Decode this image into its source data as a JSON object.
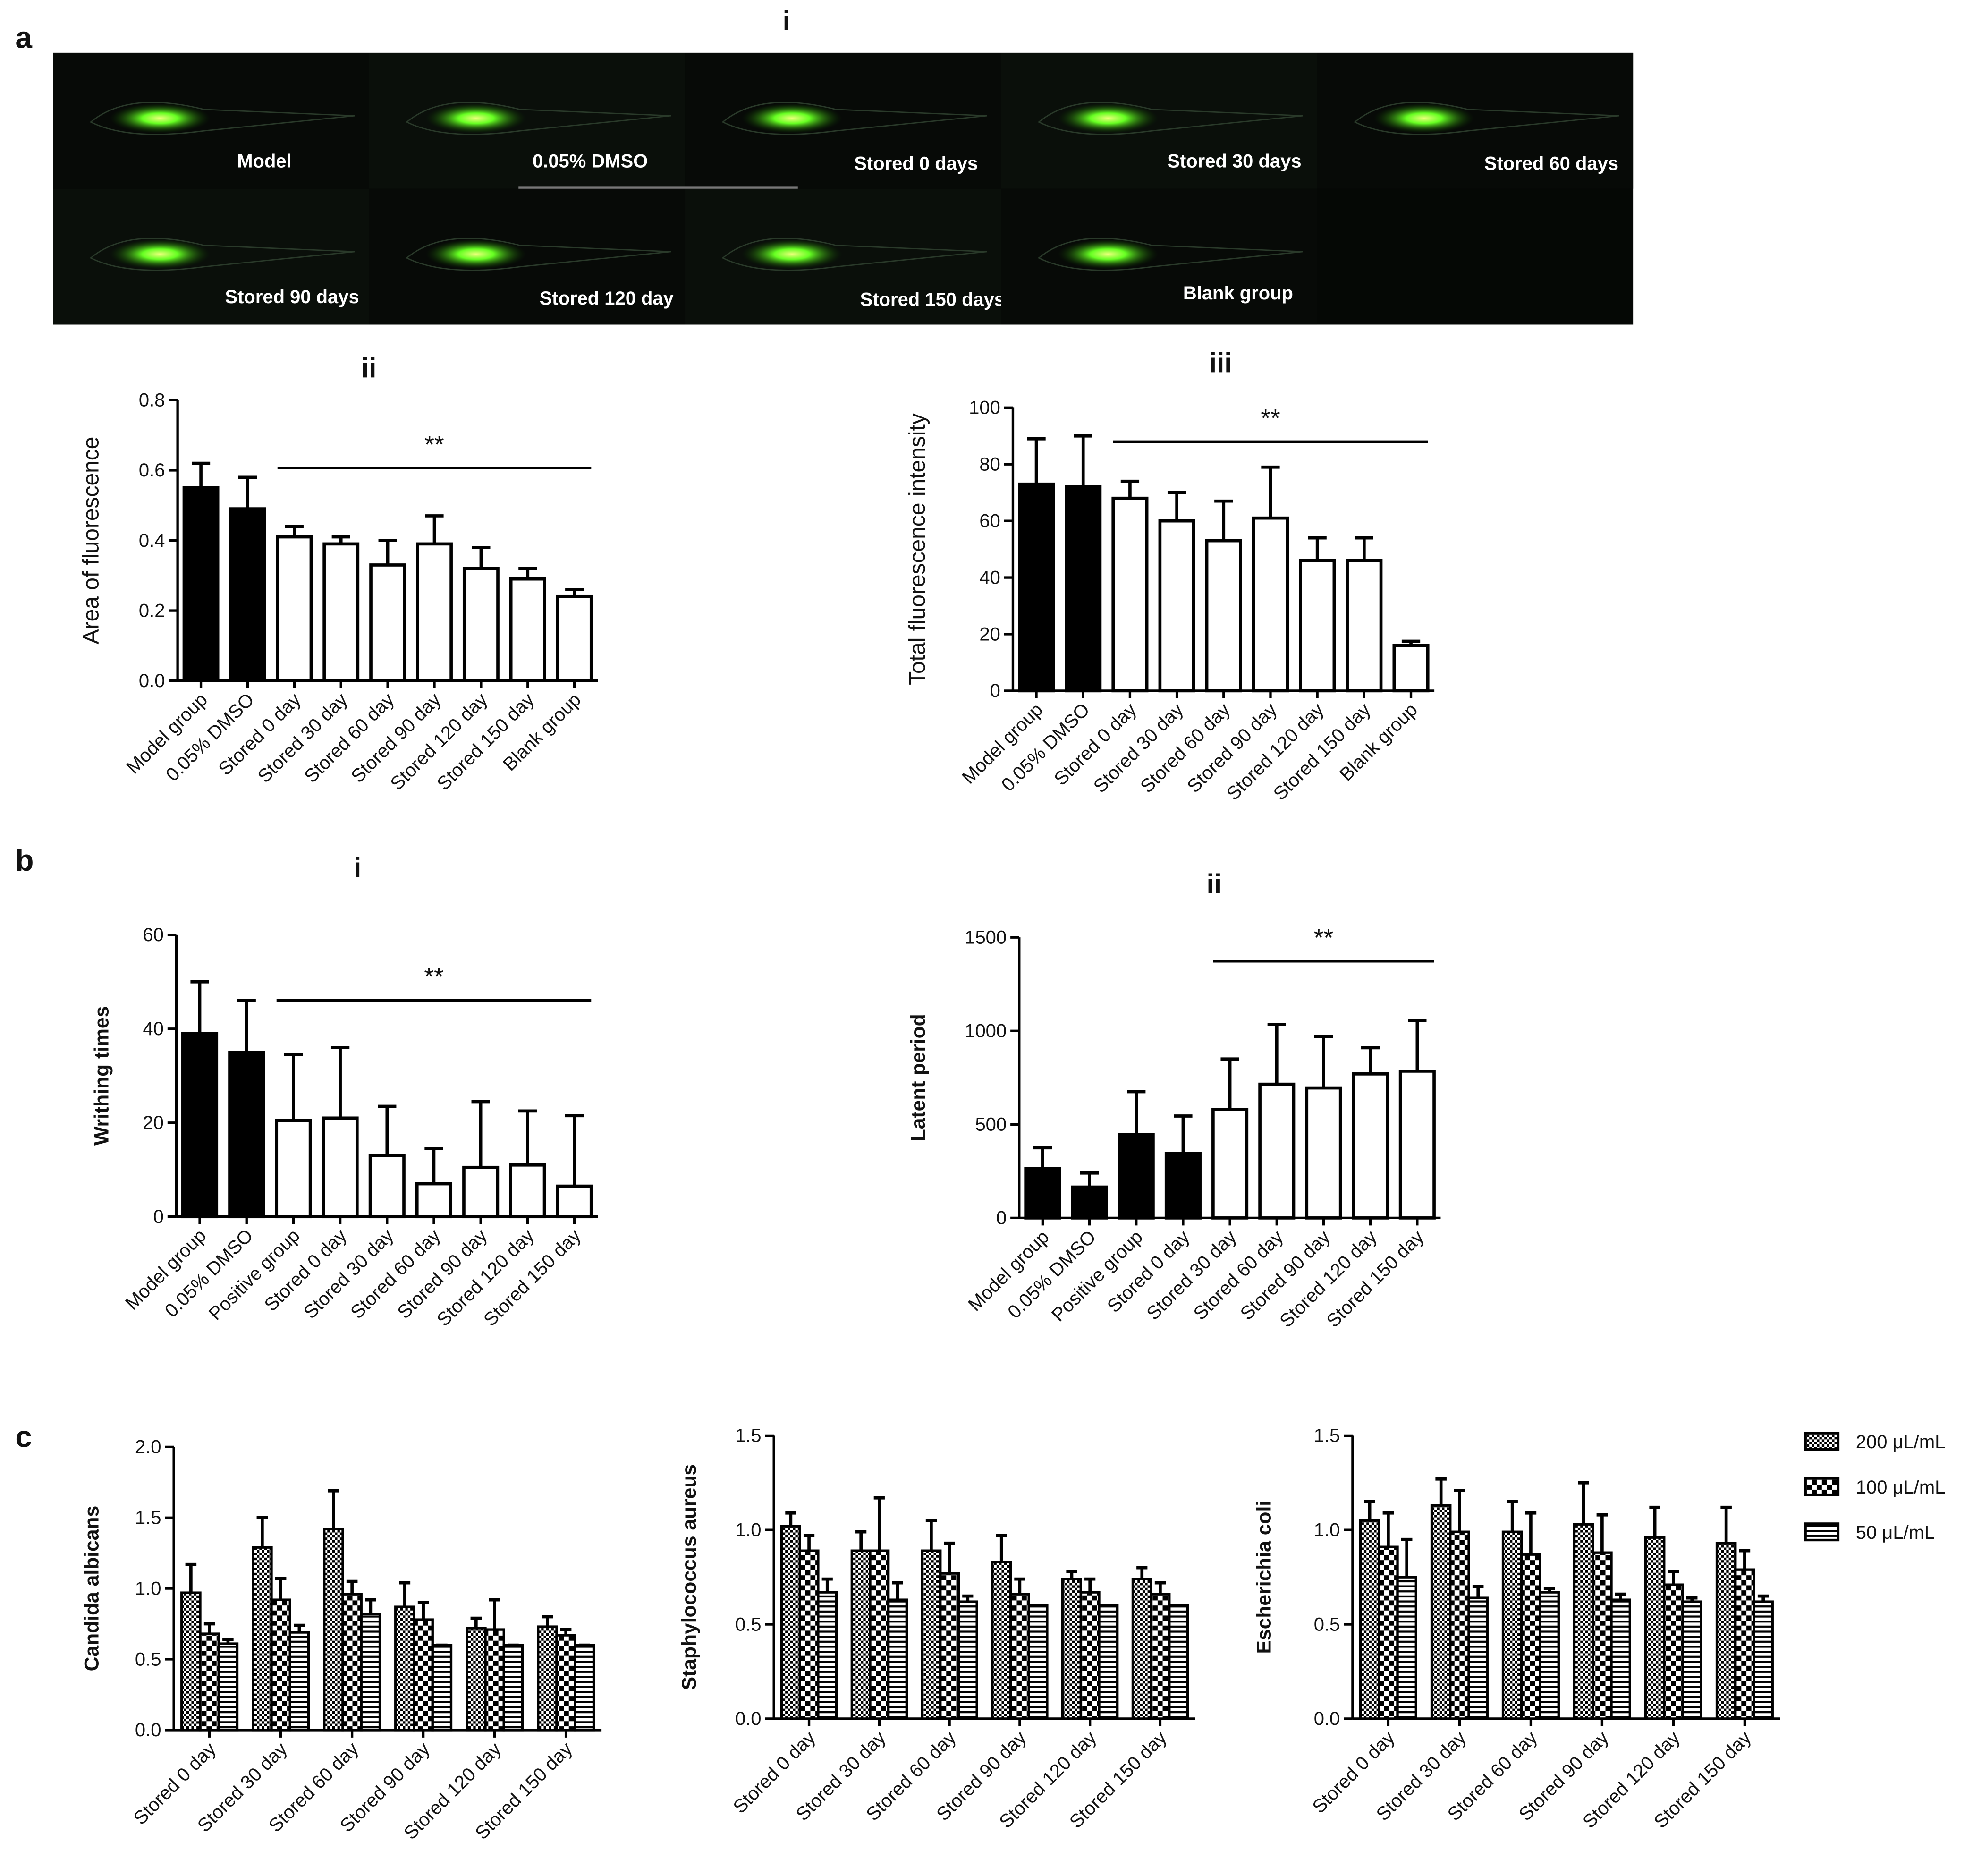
{
  "figure": {
    "panel_labels": [
      "a",
      "b",
      "c"
    ],
    "image_panel": {
      "title": "i",
      "labels": [
        "Model",
        "0.05% DMSO",
        "Stored  0 days",
        "Stored 30 days",
        "Stored 60 days",
        "Stored 90 days",
        "Stored 120 day",
        "Stored 150 days",
        "Blank group"
      ]
    }
  },
  "chart_data": [
    {
      "type": "bar",
      "title": "ii",
      "ylabel": "Area of fluorescence",
      "categories": [
        "Model group",
        "0.05% DMSO",
        "Stored 0 day",
        "Stored 30 day",
        "Stored 60 day",
        "Stored 90 day",
        "Stored 120 day",
        "Stored 150 day",
        "Blank group"
      ],
      "values": [
        0.55,
        0.49,
        0.41,
        0.39,
        0.33,
        0.39,
        0.32,
        0.29,
        0.24
      ],
      "errors": [
        0.07,
        0.09,
        0.03,
        0.02,
        0.07,
        0.08,
        0.06,
        0.03,
        0.02
      ],
      "colors": [
        "#000000",
        "#000000",
        "#ffffff",
        "#ffffff",
        "#ffffff",
        "#ffffff",
        "#ffffff",
        "#ffffff",
        "#ffffff"
      ],
      "ylim": [
        0,
        0.8
      ],
      "yticks": [
        {
          "value": 0,
          "label": "0.0"
        },
        0.2,
        0.4,
        0.6,
        0.8
      ],
      "significance": {
        "text": "**",
        "start": "Stored 0 day",
        "end": "Blank group"
      }
    },
    {
      "type": "bar",
      "title": "iii",
      "ylabel": "Total fluorescence intensity",
      "categories": [
        "Model group",
        "0.05% DMSO",
        "Stored 0 day",
        "Stored 30 day",
        "Stored 60 day",
        "Stored 90 day",
        "Stored 120 day",
        "Stored 150 day",
        "Blank group"
      ],
      "values": [
        73,
        72,
        68,
        60,
        53,
        61,
        46,
        46,
        16
      ],
      "errors": [
        16,
        18,
        6,
        10,
        14,
        18,
        8,
        8,
        1.5
      ],
      "colors": [
        "#000000",
        "#000000",
        "#ffffff",
        "#ffffff",
        "#ffffff",
        "#ffffff",
        "#ffffff",
        "#ffffff",
        "#ffffff"
      ],
      "ylim": [
        0,
        100
      ],
      "yticks": [
        0,
        20,
        40,
        60,
        80,
        100
      ],
      "significance": {
        "text": "**",
        "start": "Stored 0 day",
        "end": "Blank group"
      }
    },
    {
      "type": "bar",
      "title": "i",
      "ylabel": "Writhing times",
      "categories": [
        "Model group",
        "0.05% DMSO",
        "Positive group",
        "Stored 0 day",
        "Stored 30 day",
        "Stored 60 day",
        "Stored 90 day",
        "Stored 120 day",
        "Stored 150 day"
      ],
      "values": [
        39,
        35,
        20.5,
        21,
        13,
        7,
        10.5,
        11,
        6.5
      ],
      "errors": [
        11,
        11,
        14,
        15,
        10.5,
        7.5,
        14,
        11.5,
        15
      ],
      "colors": [
        "#000000",
        "#000000",
        "#ffffff",
        "#ffffff",
        "#ffffff",
        "#ffffff",
        "#ffffff",
        "#ffffff",
        "#ffffff"
      ],
      "ylim": [
        0,
        60
      ],
      "yticks": [
        0,
        20,
        40,
        60
      ],
      "significance": {
        "text": "**",
        "start": "Positive group",
        "end": "Stored 150 day"
      }
    },
    {
      "type": "bar",
      "title": "ii",
      "ylabel": "Latent period",
      "categories": [
        "Model group",
        "0.05% DMSO",
        "Positive group",
        "Stored 0 day",
        "Stored 30 day",
        "Stored 60 day",
        "Stored 90 day",
        "Stored 120 day",
        "Stored 150 day"
      ],
      "values": [
        265,
        165,
        445,
        345,
        580,
        715,
        695,
        770,
        785
      ],
      "errors": [
        110,
        75,
        230,
        200,
        270,
        320,
        275,
        140,
        270
      ],
      "colors": [
        "#000000",
        "#000000",
        "#000000",
        "#000000",
        "#ffffff",
        "#ffffff",
        "#ffffff",
        "#ffffff",
        "#ffffff"
      ],
      "ylim": [
        0,
        1500
      ],
      "yticks": [
        0,
        500,
        1000,
        1500
      ],
      "significance": {
        "text": "**",
        "start": "Stored 30 day",
        "end": "Stored 150 day"
      }
    },
    {
      "type": "grouped-bar",
      "ylabel": "Candida albicans",
      "categories": [
        "Stored 0 day",
        "Stored 30 day",
        "Stored 60 day",
        "Stored 90 day",
        "Stored 120 day",
        "Stored 150 day"
      ],
      "series": [
        {
          "name": "200 μL/mL",
          "color": "#000000",
          "pattern": "fine-checker",
          "values": [
            0.97,
            1.29,
            1.42,
            0.87,
            0.72,
            0.73
          ],
          "errors": [
            0.2,
            0.21,
            0.27,
            0.17,
            0.07,
            0.07
          ]
        },
        {
          "name": "100 μL/mL",
          "color": "#000000",
          "pattern": "checker",
          "values": [
            0.68,
            0.92,
            0.96,
            0.78,
            0.71,
            0.67
          ],
          "errors": [
            0.07,
            0.15,
            0.09,
            0.12,
            0.21,
            0.04
          ]
        },
        {
          "name": "50 μL/mL",
          "color": "#000000",
          "pattern": "stripes",
          "values": [
            0.61,
            0.69,
            0.82,
            0.6,
            0.6,
            0.6
          ],
          "errors": [
            0.03,
            0.05,
            0.1,
            0,
            0,
            0
          ]
        }
      ],
      "ylim": [
        0,
        2
      ],
      "yticks": [
        {
          "value": 0,
          "label": "0.0"
        },
        0.5,
        {
          "value": 1,
          "label": "1.0"
        },
        1.5,
        {
          "value": 2,
          "label": "2.0"
        }
      ]
    },
    {
      "type": "grouped-bar",
      "ylabel": "Staphylococcus aureus",
      "categories": [
        "Stored 0 day",
        "Stored 30 day",
        "Stored 60 day",
        "Stored 90 day",
        "Stored 120 day",
        "Stored 150 day"
      ],
      "series": [
        {
          "name": "200 μL/mL",
          "color": "#000000",
          "pattern": "fine-checker",
          "values": [
            1.02,
            0.89,
            0.89,
            0.83,
            0.74,
            0.74
          ],
          "errors": [
            0.07,
            0.1,
            0.16,
            0.14,
            0.04,
            0.06
          ]
        },
        {
          "name": "100 μL/mL",
          "color": "#000000",
          "pattern": "checker",
          "values": [
            0.89,
            0.89,
            0.77,
            0.66,
            0.67,
            0.66
          ],
          "errors": [
            0.08,
            0.28,
            0.16,
            0.08,
            0.07,
            0.06
          ]
        },
        {
          "name": "50 μL/mL",
          "color": "#000000",
          "pattern": "stripes",
          "values": [
            0.67,
            0.63,
            0.62,
            0.6,
            0.6,
            0.6
          ],
          "errors": [
            0.07,
            0.09,
            0.03,
            0,
            0,
            0
          ]
        }
      ],
      "ylim": [
        0,
        1.5
      ],
      "yticks": [
        {
          "value": 0,
          "label": "0.0"
        },
        0.5,
        {
          "value": 1,
          "label": "1.0"
        },
        1.5
      ]
    },
    {
      "type": "grouped-bar",
      "ylabel": "Escherichia coli",
      "legend": "outside-right",
      "categories": [
        "Stored 0 day",
        "Stored 30 day",
        "Stored 60 day",
        "Stored 90 day",
        "Stored 120 day",
        "Stored 150 day"
      ],
      "series": [
        {
          "name": "200 μL/mL",
          "color": "#000000",
          "pattern": "fine-checker",
          "values": [
            1.05,
            1.13,
            0.99,
            1.03,
            0.96,
            0.93
          ],
          "errors": [
            0.1,
            0.14,
            0.16,
            0.22,
            0.16,
            0.19
          ]
        },
        {
          "name": "100 μL/mL",
          "color": "#000000",
          "pattern": "checker",
          "values": [
            0.91,
            0.99,
            0.87,
            0.88,
            0.71,
            0.79
          ],
          "errors": [
            0.18,
            0.22,
            0.22,
            0.2,
            0.07,
            0.1
          ]
        },
        {
          "name": "50 μL/mL",
          "color": "#000000",
          "pattern": "stripes",
          "values": [
            0.75,
            0.64,
            0.67,
            0.63,
            0.62,
            0.62
          ],
          "errors": [
            0.2,
            0.06,
            0.02,
            0.03,
            0.02,
            0.03
          ]
        }
      ],
      "ylim": [
        0,
        1.5
      ],
      "yticks": [
        {
          "value": 0,
          "label": "0.0"
        },
        0.5,
        {
          "value": 1,
          "label": "1.0"
        },
        1.5
      ]
    }
  ]
}
